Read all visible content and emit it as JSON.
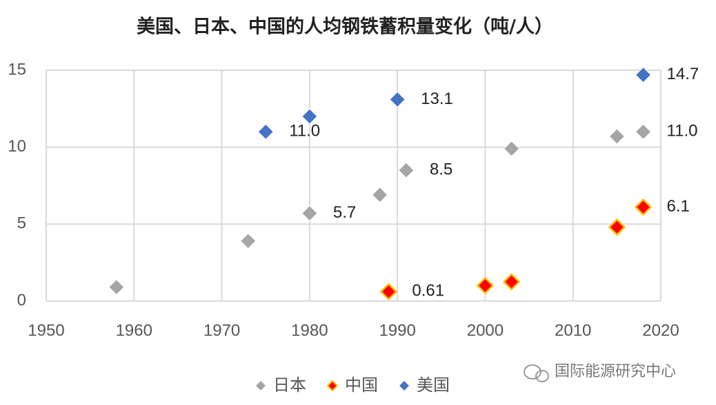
{
  "chart_data": {
    "type": "scatter",
    "title": "美国、日本、中国的人均钢铁蓄积量变化（吨/人）",
    "xlim": [
      1950,
      2020
    ],
    "xticks": [
      1950,
      1960,
      1970,
      1980,
      1990,
      2000,
      2010,
      2020
    ],
    "ylim": [
      0,
      15
    ],
    "yticks": [
      0,
      5,
      10,
      15
    ],
    "grid": true,
    "legend": "bottom",
    "watermark": "国际能源研究中心",
    "series": [
      {
        "name": "日本",
        "color": "#a5a5a5",
        "x": [
          1958,
          1973,
          1980,
          1988,
          1991,
          2003,
          2015,
          2018
        ],
        "values": [
          0.9,
          3.9,
          5.7,
          6.9,
          8.5,
          9.9,
          10.7,
          11.0
        ],
        "value_labels": [
          null,
          null,
          "5.7",
          null,
          "8.5",
          null,
          null,
          "11.0"
        ]
      },
      {
        "name": "中国",
        "color": "#ff0000",
        "edge_color": "#ffc000",
        "x": [
          1989,
          2000,
          2003,
          2015,
          2018
        ],
        "values": [
          0.61,
          1.0,
          1.25,
          4.8,
          6.1
        ],
        "value_labels": [
          "0.61",
          null,
          null,
          null,
          "6.1"
        ]
      },
      {
        "name": "美国",
        "color": "#4472c4",
        "x": [
          1975,
          1980,
          1990,
          2018
        ],
        "values": [
          11.0,
          12.0,
          13.1,
          14.7
        ],
        "value_labels": [
          "11.0",
          null,
          "13.1",
          "14.7"
        ]
      }
    ]
  }
}
